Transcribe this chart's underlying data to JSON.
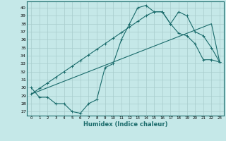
{
  "xlabel": "Humidex (Indice chaleur)",
  "ylabel": "",
  "bg_color": "#c5e8e8",
  "grid_color": "#a8cccc",
  "line_color": "#1a6b6b",
  "xlim": [
    -0.5,
    23.5
  ],
  "ylim": [
    26.5,
    40.8
  ],
  "xticks": [
    0,
    1,
    2,
    3,
    4,
    5,
    6,
    7,
    8,
    9,
    10,
    11,
    12,
    13,
    14,
    15,
    16,
    17,
    18,
    19,
    20,
    21,
    22,
    23
  ],
  "yticks": [
    27,
    28,
    29,
    30,
    31,
    32,
    33,
    34,
    35,
    36,
    37,
    38,
    39,
    40
  ],
  "series1_x": [
    0,
    1,
    2,
    3,
    4,
    5,
    6,
    7,
    8,
    9,
    10,
    11,
    12,
    13,
    14,
    15,
    16,
    17,
    18,
    19,
    20,
    21,
    22,
    23
  ],
  "series1_y": [
    30.0,
    28.8,
    28.8,
    28.0,
    28.0,
    27.0,
    26.8,
    28.0,
    28.5,
    32.5,
    33.0,
    36.0,
    38.0,
    40.0,
    40.3,
    39.5,
    39.5,
    38.0,
    39.5,
    39.0,
    37.0,
    36.5,
    35.0,
    33.2
  ],
  "series2_x": [
    0,
    1,
    2,
    3,
    4,
    5,
    6,
    7,
    8,
    9,
    10,
    11,
    12,
    13,
    14,
    15,
    16,
    17,
    18,
    19,
    20,
    21,
    22,
    23
  ],
  "series2_y": [
    29.2,
    29.6,
    30.0,
    30.4,
    30.8,
    31.2,
    31.6,
    32.0,
    32.4,
    32.8,
    33.2,
    33.6,
    34.0,
    34.4,
    34.8,
    35.2,
    35.6,
    36.0,
    36.4,
    36.8,
    37.2,
    37.6,
    38.0,
    33.2
  ],
  "series3_x": [
    0,
    1,
    2,
    3,
    4,
    5,
    6,
    7,
    8,
    9,
    10,
    11,
    12,
    13,
    14,
    15,
    16,
    17,
    18,
    19,
    20,
    21,
    22,
    23
  ],
  "series3_y": [
    29.2,
    29.9,
    30.6,
    31.3,
    32.0,
    32.7,
    33.4,
    34.1,
    34.8,
    35.5,
    36.2,
    36.9,
    37.6,
    38.3,
    39.0,
    39.5,
    39.5,
    38.0,
    36.8,
    36.5,
    35.5,
    33.5,
    33.5,
    33.2
  ],
  "marker": "+"
}
